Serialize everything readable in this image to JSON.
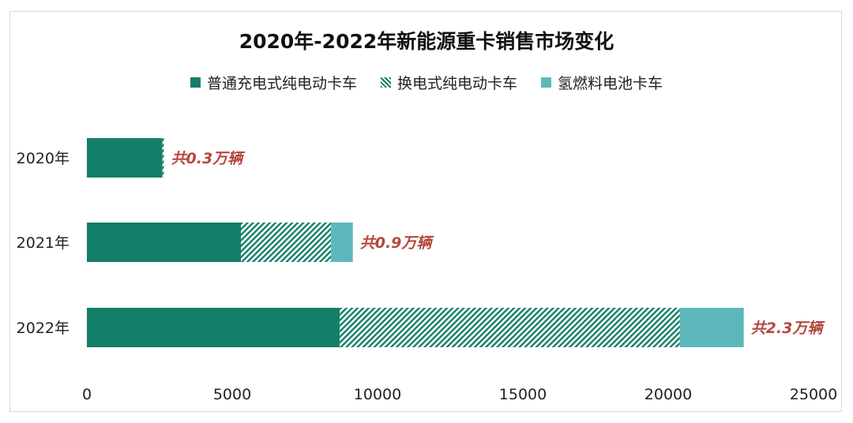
{
  "chart_data": {
    "type": "bar",
    "orientation": "horizontal",
    "stacked": true,
    "title": "2020年-2022年新能源重卡销售市场变化",
    "categories": [
      "2020年",
      "2021年",
      "2022年"
    ],
    "series": [
      {
        "name": "普通充电式纯电动卡车",
        "values": [
          2600,
          5300,
          8700
        ],
        "color": "#147f68",
        "pattern": "solid"
      },
      {
        "name": "换电式纯电动卡车",
        "values": [
          50,
          3100,
          11700
        ],
        "color": "#147f68",
        "pattern": "hatch"
      },
      {
        "name": "氢燃料电池卡车",
        "values": [
          0,
          750,
          2200
        ],
        "color": "#5db8bb",
        "pattern": "solid"
      }
    ],
    "annotations": [
      "共0.3万辆",
      "共0.9万辆",
      "共2.3万辆"
    ],
    "annotation_color": "#b5483f",
    "xlim": [
      0,
      25000
    ],
    "xticks": [
      "0",
      "5000",
      "10000",
      "15000",
      "20000",
      "25000"
    ],
    "grid": false,
    "legend_position": "top"
  }
}
